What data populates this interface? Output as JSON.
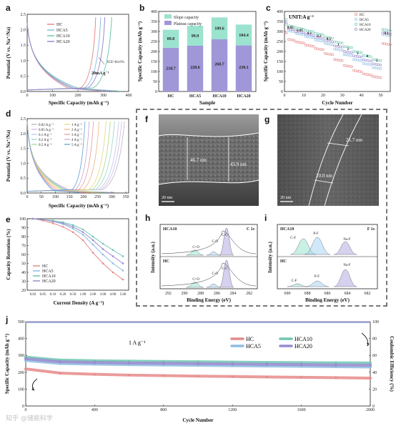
{
  "panels": {
    "a": {
      "letter": "a",
      "ylabel": "Potential (V vs. Na⁺/Na)",
      "xlabel": "Specific Capacity (mAh g⁻¹)",
      "xticks": [
        "0",
        "100",
        "200",
        "300",
        "400"
      ],
      "yticks": [
        "0.0",
        "0.5",
        "1.0",
        "1.5",
        "2.0",
        "2.5"
      ],
      "legend": [
        {
          "name": "HC",
          "color": "#e68a8a"
        },
        {
          "name": "HCA5",
          "color": "#8fbde0"
        },
        {
          "name": "HCA10",
          "color": "#6fc7b1"
        },
        {
          "name": "HCA20",
          "color": "#9a8bd0"
        }
      ],
      "current_note": "20mA g⁻¹",
      "ice_note": "ICE=84.6%"
    },
    "b": {
      "letter": "b",
      "ylabel": "Specific Capacity (mAh g⁻¹)",
      "xlabel": "Sample",
      "legend": [
        {
          "name": "Slope capacity",
          "color": "#9be3cf"
        },
        {
          "name": "Plateau capacity",
          "color": "#9f97d8"
        }
      ]
    },
    "c": {
      "letter": "c",
      "ylabel": "Specific Capacity (mAh g⁻¹)",
      "xlabel": "Cycle Number",
      "unit_note": "UNIT:A g⁻¹",
      "xticks": [
        "0",
        "10",
        "20",
        "30",
        "40",
        "50"
      ],
      "yticks": [
        "0",
        "50",
        "100",
        "150",
        "200",
        "250",
        "300",
        "350",
        "400"
      ],
      "rate_labels": [
        "0.02",
        "0.05",
        "0.1",
        "0.2",
        "0.5",
        "1",
        "2",
        "3",
        "4",
        "5",
        "0.1"
      ],
      "legend": [
        {
          "name": "HC",
          "color": "#e68a8a"
        },
        {
          "name": "HCA5",
          "color": "#8fbde0"
        },
        {
          "name": "HCA10",
          "color": "#6fc7b1"
        },
        {
          "name": "HCA20",
          "color": "#9a8bd0"
        }
      ]
    },
    "d": {
      "letter": "d",
      "ylabel": "Potential (V vs. Na⁺/Na)",
      "xlabel": "Specific Capacity (mAh g⁻¹)",
      "xticks": [
        "0",
        "50",
        "100",
        "150",
        "200",
        "250",
        "300",
        "350"
      ],
      "yticks": [
        "0.0",
        "0.5",
        "1.0",
        "1.5",
        "2.0",
        "2.5"
      ],
      "legend_col1": [
        "0.02 A g⁻¹",
        "0.05 A g⁻¹",
        "0.1 A g⁻¹",
        "0.2 A g⁻¹",
        "0.5 A g⁻¹"
      ],
      "legend_col2": [
        "1 A g⁻¹",
        "2 A g⁻¹",
        "3 A g⁻¹",
        "4 A g⁻¹",
        "5 A g⁻¹"
      ],
      "colors": [
        "#b8b8b8",
        "#d7b4e6",
        "#b9c6ea",
        "#9ad4c6",
        "#a7d88a",
        "#e6d77a",
        "#f0b07a",
        "#e79a9a",
        "#c7a0d8",
        "#5aa0d0"
      ]
    },
    "e": {
      "letter": "e",
      "ylabel": "Capacity Retention (%)",
      "xlabel": "Current Density (A g⁻¹)",
      "xticks": [
        "0.02",
        "0.05",
        "0.10",
        "0.20",
        "0.50",
        "1.00",
        "2.00",
        "3.00",
        "4.00",
        "5.00"
      ],
      "yticks": [
        "20",
        "30",
        "40",
        "50",
        "60",
        "70",
        "80",
        "90",
        "100"
      ],
      "legend": [
        {
          "name": "HC",
          "color": "#e68a8a"
        },
        {
          "name": "HCA5",
          "color": "#8fbde0"
        },
        {
          "name": "HCA10",
          "color": "#6fc7b1"
        },
        {
          "name": "HCA20",
          "color": "#9a8bd0"
        }
      ]
    },
    "f": {
      "letter": "f",
      "measure1": "46.7 nm",
      "measure2": "43.9 nm",
      "scale": "20 nm"
    },
    "g": {
      "letter": "g",
      "measure1": "21.7 nm",
      "measure2": "20.0 nm",
      "scale": "20 nm"
    },
    "h": {
      "letter": "h",
      "ylabel": "Intensity (a.u.)",
      "xlabel": "Binding Energy (eV)",
      "xticks": [
        "292",
        "290",
        "288",
        "286",
        "284",
        "282"
      ],
      "top_sample": "HCA10",
      "bottom_sample": "HC",
      "region": "C 1s",
      "peaks": [
        "C=O",
        "C-O",
        "C-C"
      ]
    },
    "i": {
      "letter": "i",
      "ylabel": "Intensity (a.u.)",
      "xlabel": "Binding Energy (eV)",
      "xticks": [
        "690",
        "688",
        "686",
        "684",
        "682"
      ],
      "top_sample": "HCA10",
      "bottom_sample": "HC",
      "region": "F 1s",
      "peaks": [
        "C-F",
        "P-F",
        "Na-F"
      ]
    },
    "j": {
      "letter": "j",
      "ylabel": "Specific Capacity (mAh g⁻¹)",
      "ylabel_right": "Coulombic Efficiency (%)",
      "xlabel": "Cycle Number",
      "xticks": [
        "0",
        "400",
        "800",
        "1200",
        "1600",
        "2000"
      ],
      "yticks": [
        "0",
        "100",
        "200",
        "300",
        "400",
        "500"
      ],
      "yticks_right": [
        "0",
        "20",
        "40",
        "60",
        "80",
        "100"
      ],
      "current_note": "1 A g⁻¹",
      "legend": [
        {
          "name": "HC",
          "color": "#e68a8a"
        },
        {
          "name": "HCA10",
          "color": "#6fc7b1"
        },
        {
          "name": "HCA5",
          "color": "#8fbde0"
        },
        {
          "name": "HCA20",
          "color": "#9a8bd0"
        }
      ]
    }
  },
  "watermark": "知乎 @储能科学",
  "chart_data": [
    {
      "panel": "b",
      "type": "bar",
      "stacked": true,
      "categories": [
        "HC",
        "HCA5",
        "HCA10",
        "HCA20"
      ],
      "series": [
        {
          "name": "Plateau capacity",
          "values": [
            218.7,
            228.6,
            260.7,
            230.1
          ]
        },
        {
          "name": "Slope capacity",
          "values": [
            89.8,
            99.9,
            109.6,
            104.4
          ]
        }
      ],
      "ylim": [
        0,
        400
      ],
      "yticks": [
        "0",
        "50",
        "100",
        "150",
        "200",
        "250",
        "300",
        "350",
        "400"
      ],
      "value_labels_plateau": [
        "218.7",
        "228.6",
        "260.7",
        "230.1"
      ],
      "value_labels_slope": [
        "89.8",
        "99.9",
        "109.6",
        "104.4"
      ]
    },
    {
      "panel": "c",
      "type": "scatter",
      "xlim": [
        0,
        55
      ],
      "ylim": [
        0,
        400
      ],
      "steps_x": [
        [
          1,
          5
        ],
        [
          6,
          10
        ],
        [
          11,
          15
        ],
        [
          16,
          20
        ],
        [
          21,
          25
        ],
        [
          26,
          30
        ],
        [
          31,
          35
        ],
        [
          36,
          40
        ],
        [
          41,
          45
        ],
        [
          46,
          50
        ],
        [
          51,
          55
        ]
      ],
      "series": [
        {
          "name": "HC",
          "values": [
            262,
            248,
            232,
            215,
            190,
            160,
            130,
            105,
            88,
            75,
            240
          ]
        },
        {
          "name": "HCA5",
          "values": [
            305,
            290,
            275,
            258,
            240,
            212,
            185,
            160,
            140,
            120,
            285
          ]
        },
        {
          "name": "HCA10",
          "values": [
            330,
            318,
            305,
            290,
            272,
            248,
            225,
            200,
            180,
            160,
            310
          ]
        },
        {
          "name": "HCA20",
          "values": [
            315,
            300,
            288,
            272,
            255,
            228,
            200,
            178,
            158,
            138,
            295
          ]
        }
      ]
    },
    {
      "panel": "e",
      "type": "line",
      "categories": [
        "0.02",
        "0.05",
        "0.10",
        "0.20",
        "0.50",
        "1.00",
        "2.00",
        "3.00",
        "4.00",
        "5.00"
      ],
      "ylim": [
        20,
        100
      ],
      "series": [
        {
          "name": "HC",
          "values": [
            100,
            98,
            95,
            91,
            85,
            76,
            62,
            50,
            40,
            32
          ]
        },
        {
          "name": "HCA5",
          "values": [
            100,
            99,
            97,
            94,
            89,
            82,
            71,
            60,
            50,
            42
          ]
        },
        {
          "name": "HCA10",
          "values": [
            100,
            99,
            98,
            96,
            93,
            88,
            80,
            72,
            65,
            58
          ]
        },
        {
          "name": "HCA20",
          "values": [
            100,
            99,
            97,
            95,
            91,
            85,
            76,
            66,
            58,
            50
          ]
        }
      ]
    },
    {
      "panel": "j",
      "type": "scatter",
      "xlim": [
        0,
        2000
      ],
      "ylim": [
        0,
        500
      ],
      "x": [
        0,
        200,
        400,
        600,
        800,
        1000,
        1200,
        1400,
        1600,
        1800,
        2000
      ],
      "series": [
        {
          "name": "HC",
          "values": [
            220,
            195,
            188,
            183,
            180,
            177,
            175,
            172,
            170,
            168,
            165
          ]
        },
        {
          "name": "HCA5",
          "values": [
            270,
            252,
            248,
            245,
            243,
            241,
            239,
            237,
            235,
            233,
            231
          ]
        },
        {
          "name": "HCA10",
          "values": [
            290,
            272,
            268,
            266,
            264,
            262,
            260,
            258,
            257,
            256,
            255
          ]
        },
        {
          "name": "HCA20",
          "values": [
            280,
            262,
            258,
            255,
            253,
            251,
            249,
            247,
            245,
            243,
            242
          ]
        }
      ],
      "ce_series": {
        "name": "Coulombic Efficiency",
        "value": 99.5
      }
    }
  ]
}
